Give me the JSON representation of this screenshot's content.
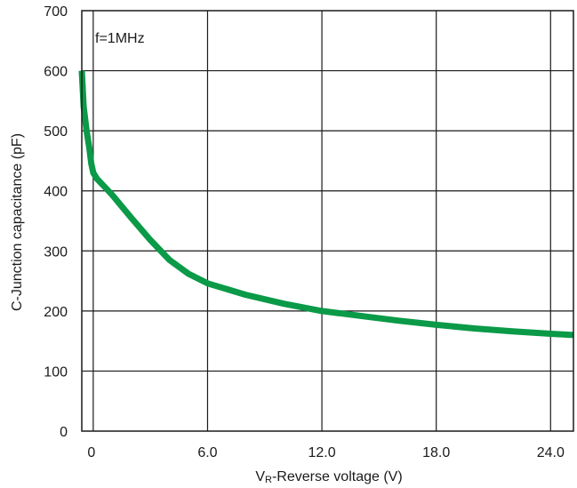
{
  "chart_data": {
    "type": "line",
    "title": "",
    "annotation": "f=1MHz",
    "xlabel_main": "V",
    "xlabel_sub": "R",
    "xlabel_rest": "-Reverse voltage (V)",
    "ylabel": "C-Junction capacitance (pF)",
    "xlim": [
      -0.6,
      25.2
    ],
    "ylim": [
      0,
      700
    ],
    "x_ticks": [
      0,
      6,
      12,
      18,
      24
    ],
    "x_tick_labels": [
      "0",
      "6.0",
      "12.0",
      "18.0",
      "24.0"
    ],
    "y_ticks": [
      0,
      100,
      200,
      300,
      400,
      500,
      600,
      700
    ],
    "y_tick_labels": [
      "0",
      "100",
      "200",
      "300",
      "400",
      "500",
      "600",
      "700"
    ],
    "grid": true,
    "line_color": "#0a9a48",
    "series": [
      {
        "x": [
          -0.6,
          -0.5,
          -0.35,
          -0.2,
          -0.1,
          0,
          0.2,
          0.5,
          1,
          2,
          3,
          4,
          5,
          6,
          8,
          10,
          12,
          14,
          16,
          18,
          20,
          22,
          24,
          25.2
        ],
        "y": [
          600,
          540,
          500,
          470,
          445,
          430,
          420,
          410,
          393,
          355,
          318,
          285,
          262,
          246,
          227,
          212,
          200,
          192,
          184,
          177,
          171,
          166,
          162,
          160
        ]
      }
    ]
  }
}
